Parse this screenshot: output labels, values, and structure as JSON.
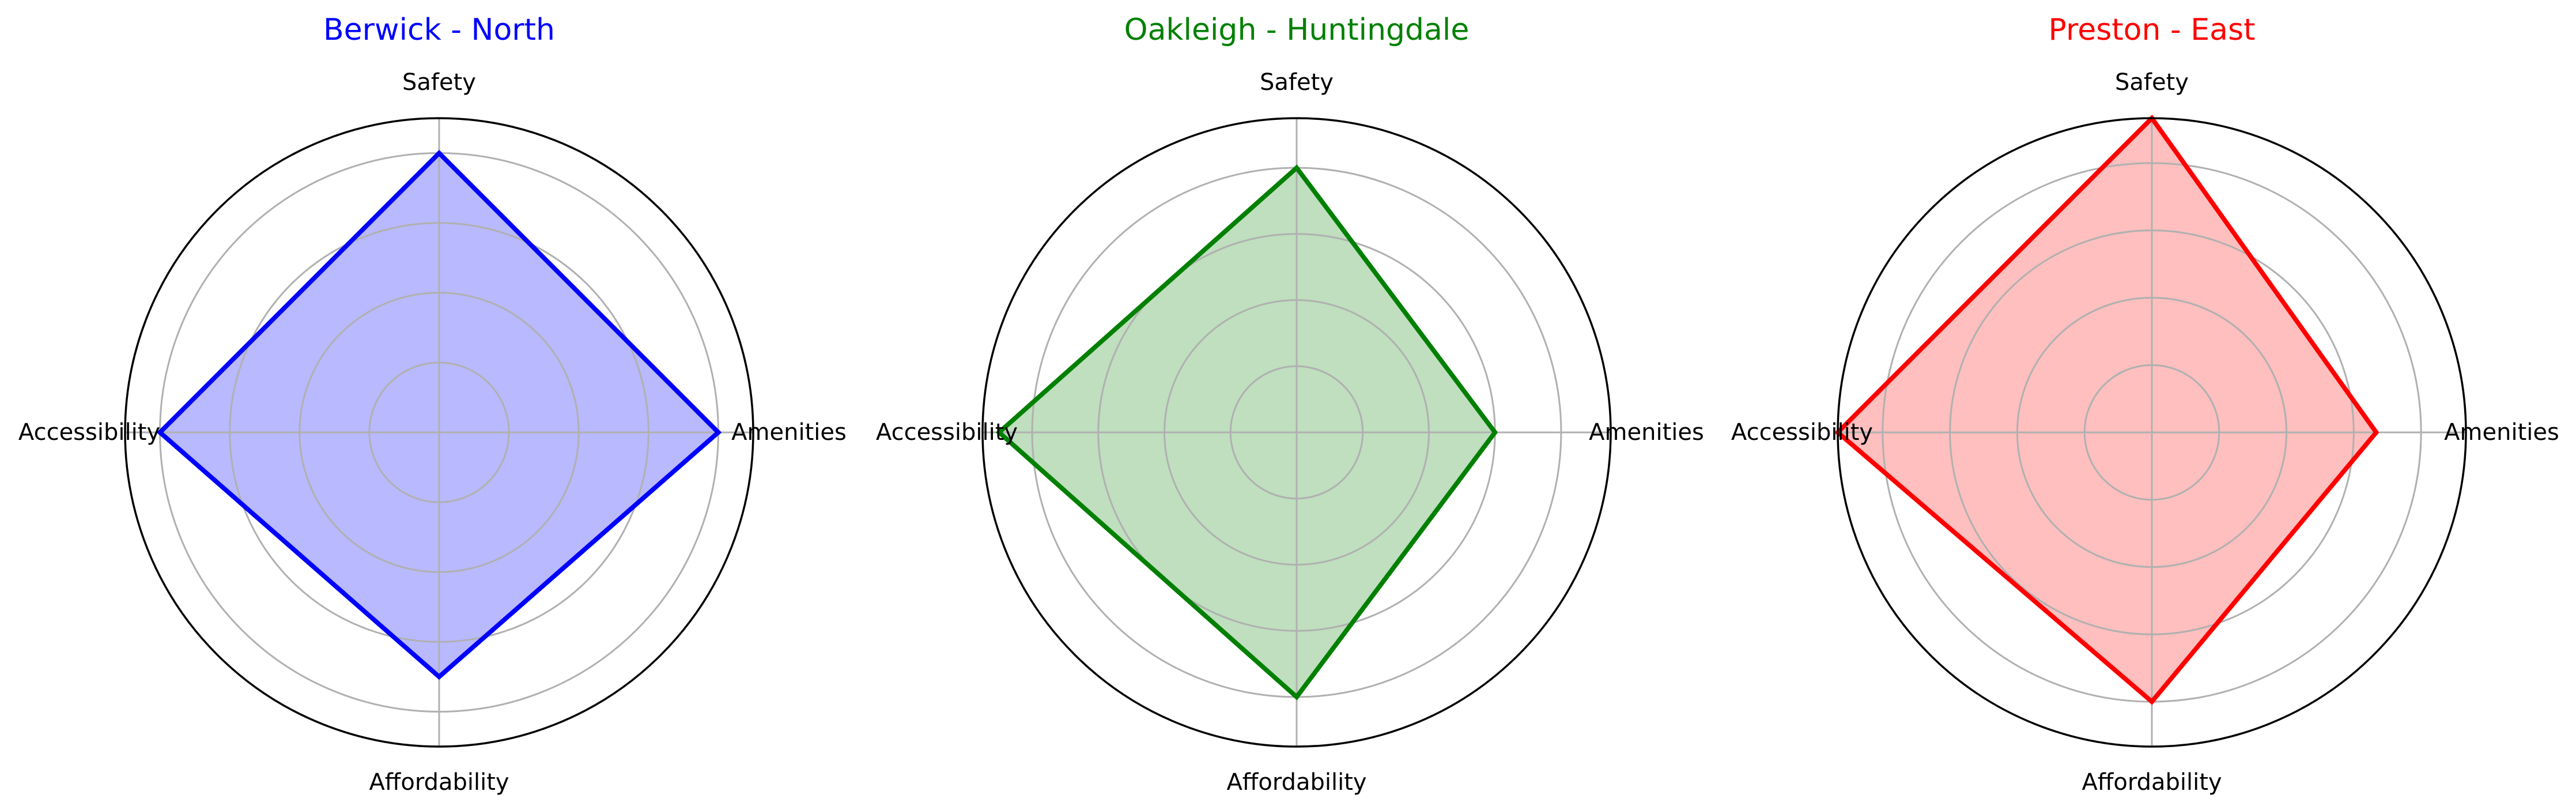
{
  "chart_data": [
    {
      "type": "radar",
      "title": "Berwick - North",
      "color": "#0000ff",
      "fill_color": "#b9b9ff",
      "axes": [
        "Amenities",
        "Safety",
        "Accessibility",
        "Affordability"
      ],
      "values": [
        8,
        8,
        8,
        7
      ],
      "rmax": 9,
      "rticks": [
        2,
        4,
        6,
        8
      ],
      "grid": true
    },
    {
      "type": "radar",
      "title": "Oakleigh - Huntingdale",
      "color": "#008000",
      "fill_color": "#bfdfbf",
      "axes": [
        "Amenities",
        "Safety",
        "Accessibility",
        "Affordability"
      ],
      "values": [
        6,
        8,
        9,
        8
      ],
      "rmax": 9.5,
      "rticks": [
        2,
        4,
        6,
        8
      ],
      "grid": true
    },
    {
      "type": "radar",
      "title": "Preston - East",
      "color": "#ff0000",
      "fill_color": "#ffbfbf",
      "axes": [
        "Amenities",
        "Safety",
        "Accessibility",
        "Affordability"
      ],
      "values": [
        5,
        7,
        7,
        6
      ],
      "rmax": 7,
      "rticks": [
        1.5,
        3,
        4.5,
        6
      ],
      "grid": true
    }
  ]
}
